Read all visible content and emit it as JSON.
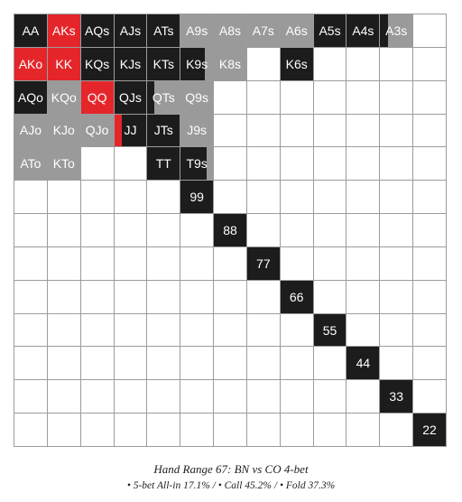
{
  "colors": {
    "allin": "#e4262b",
    "call": "#1c1c1c",
    "fold": "#9a9a9a",
    "empty": "#ffffff",
    "gridline": "#9c9c9c"
  },
  "caption": {
    "title": "Hand Range 67: BN vs CO 4-bet",
    "stats": "• 5-bet All-in 17.1% / • Call 45.2% / • Fold 37.3%"
  },
  "cells": [
    {
      "r": 0,
      "c": 0,
      "label": "AA",
      "parts": [
        [
          "call",
          1
        ]
      ]
    },
    {
      "r": 0,
      "c": 1,
      "label": "AKs",
      "parts": [
        [
          "allin",
          1
        ]
      ]
    },
    {
      "r": 0,
      "c": 2,
      "label": "AQs",
      "parts": [
        [
          "call",
          1
        ]
      ]
    },
    {
      "r": 0,
      "c": 3,
      "label": "AJs",
      "parts": [
        [
          "call",
          1
        ]
      ]
    },
    {
      "r": 0,
      "c": 4,
      "label": "ATs",
      "parts": [
        [
          "call",
          1
        ]
      ]
    },
    {
      "r": 0,
      "c": 5,
      "label": "A9s",
      "parts": [
        [
          "fold",
          1
        ]
      ]
    },
    {
      "r": 0,
      "c": 6,
      "label": "A8s",
      "parts": [
        [
          "fold",
          1
        ]
      ]
    },
    {
      "r": 0,
      "c": 7,
      "label": "A7s",
      "parts": [
        [
          "fold",
          1
        ]
      ]
    },
    {
      "r": 0,
      "c": 8,
      "label": "A6s",
      "parts": [
        [
          "fold",
          1
        ]
      ]
    },
    {
      "r": 0,
      "c": 9,
      "label": "A5s",
      "parts": [
        [
          "call",
          1
        ]
      ]
    },
    {
      "r": 0,
      "c": 10,
      "label": "A4s",
      "parts": [
        [
          "call",
          1
        ]
      ]
    },
    {
      "r": 0,
      "c": 11,
      "label": "A3s",
      "parts": [
        [
          "call",
          0.25
        ],
        [
          "fold",
          0.75
        ]
      ]
    },
    {
      "r": 1,
      "c": 0,
      "label": "AKo",
      "parts": [
        [
          "allin",
          1
        ]
      ]
    },
    {
      "r": 1,
      "c": 1,
      "label": "KK",
      "parts": [
        [
          "allin",
          1
        ]
      ]
    },
    {
      "r": 1,
      "c": 2,
      "label": "KQs",
      "parts": [
        [
          "call",
          1
        ]
      ]
    },
    {
      "r": 1,
      "c": 3,
      "label": "KJs",
      "parts": [
        [
          "call",
          1
        ]
      ]
    },
    {
      "r": 1,
      "c": 4,
      "label": "KTs",
      "parts": [
        [
          "call",
          1
        ]
      ]
    },
    {
      "r": 1,
      "c": 5,
      "label": "K9s",
      "parts": [
        [
          "call",
          0.75
        ],
        [
          "fold",
          0.25
        ]
      ]
    },
    {
      "r": 1,
      "c": 6,
      "label": "K8s",
      "parts": [
        [
          "fold",
          1
        ]
      ]
    },
    {
      "r": 1,
      "c": 8,
      "label": "K6s",
      "parts": [
        [
          "call",
          1
        ]
      ]
    },
    {
      "r": 2,
      "c": 0,
      "label": "AQo",
      "parts": [
        [
          "call",
          1
        ]
      ]
    },
    {
      "r": 2,
      "c": 1,
      "label": "KQo",
      "parts": [
        [
          "fold",
          1
        ]
      ]
    },
    {
      "r": 2,
      "c": 2,
      "label": "QQ",
      "parts": [
        [
          "allin",
          1
        ]
      ]
    },
    {
      "r": 2,
      "c": 3,
      "label": "QJs",
      "parts": [
        [
          "call",
          1
        ]
      ]
    },
    {
      "r": 2,
      "c": 4,
      "label": "QTs",
      "parts": [
        [
          "call",
          0.2
        ],
        [
          "fold",
          0.8
        ]
      ]
    },
    {
      "r": 2,
      "c": 5,
      "label": "Q9s",
      "parts": [
        [
          "fold",
          1
        ]
      ]
    },
    {
      "r": 3,
      "c": 0,
      "label": "AJo",
      "parts": [
        [
          "fold",
          1
        ]
      ]
    },
    {
      "r": 3,
      "c": 1,
      "label": "KJo",
      "parts": [
        [
          "fold",
          1
        ]
      ]
    },
    {
      "r": 3,
      "c": 2,
      "label": "QJo",
      "parts": [
        [
          "fold",
          1
        ]
      ]
    },
    {
      "r": 3,
      "c": 3,
      "label": "JJ",
      "parts": [
        [
          "allin",
          0.25
        ],
        [
          "call",
          0.75
        ]
      ]
    },
    {
      "r": 3,
      "c": 4,
      "label": "JTs",
      "parts": [
        [
          "call",
          1
        ]
      ]
    },
    {
      "r": 3,
      "c": 5,
      "label": "J9s",
      "parts": [
        [
          "fold",
          1
        ]
      ]
    },
    {
      "r": 4,
      "c": 0,
      "label": "ATo",
      "parts": [
        [
          "fold",
          1
        ]
      ]
    },
    {
      "r": 4,
      "c": 1,
      "label": "KTo",
      "parts": [
        [
          "fold",
          1
        ]
      ]
    },
    {
      "r": 4,
      "c": 4,
      "label": "TT",
      "parts": [
        [
          "call",
          1
        ]
      ]
    },
    {
      "r": 4,
      "c": 5,
      "label": "T9s",
      "parts": [
        [
          "call",
          0.8
        ],
        [
          "fold",
          0.2
        ]
      ]
    },
    {
      "r": 5,
      "c": 5,
      "label": "99",
      "parts": [
        [
          "call",
          1
        ]
      ]
    },
    {
      "r": 6,
      "c": 6,
      "label": "88",
      "parts": [
        [
          "call",
          1
        ]
      ]
    },
    {
      "r": 7,
      "c": 7,
      "label": "77",
      "parts": [
        [
          "call",
          1
        ]
      ]
    },
    {
      "r": 8,
      "c": 8,
      "label": "66",
      "parts": [
        [
          "call",
          1
        ]
      ]
    },
    {
      "r": 9,
      "c": 9,
      "label": "55",
      "parts": [
        [
          "call",
          1
        ]
      ]
    },
    {
      "r": 10,
      "c": 10,
      "label": "44",
      "parts": [
        [
          "call",
          1
        ]
      ]
    },
    {
      "r": 11,
      "c": 11,
      "label": "33",
      "parts": [
        [
          "call",
          1
        ]
      ]
    },
    {
      "r": 12,
      "c": 12,
      "label": "22",
      "parts": [
        [
          "call",
          1
        ]
      ]
    }
  ]
}
